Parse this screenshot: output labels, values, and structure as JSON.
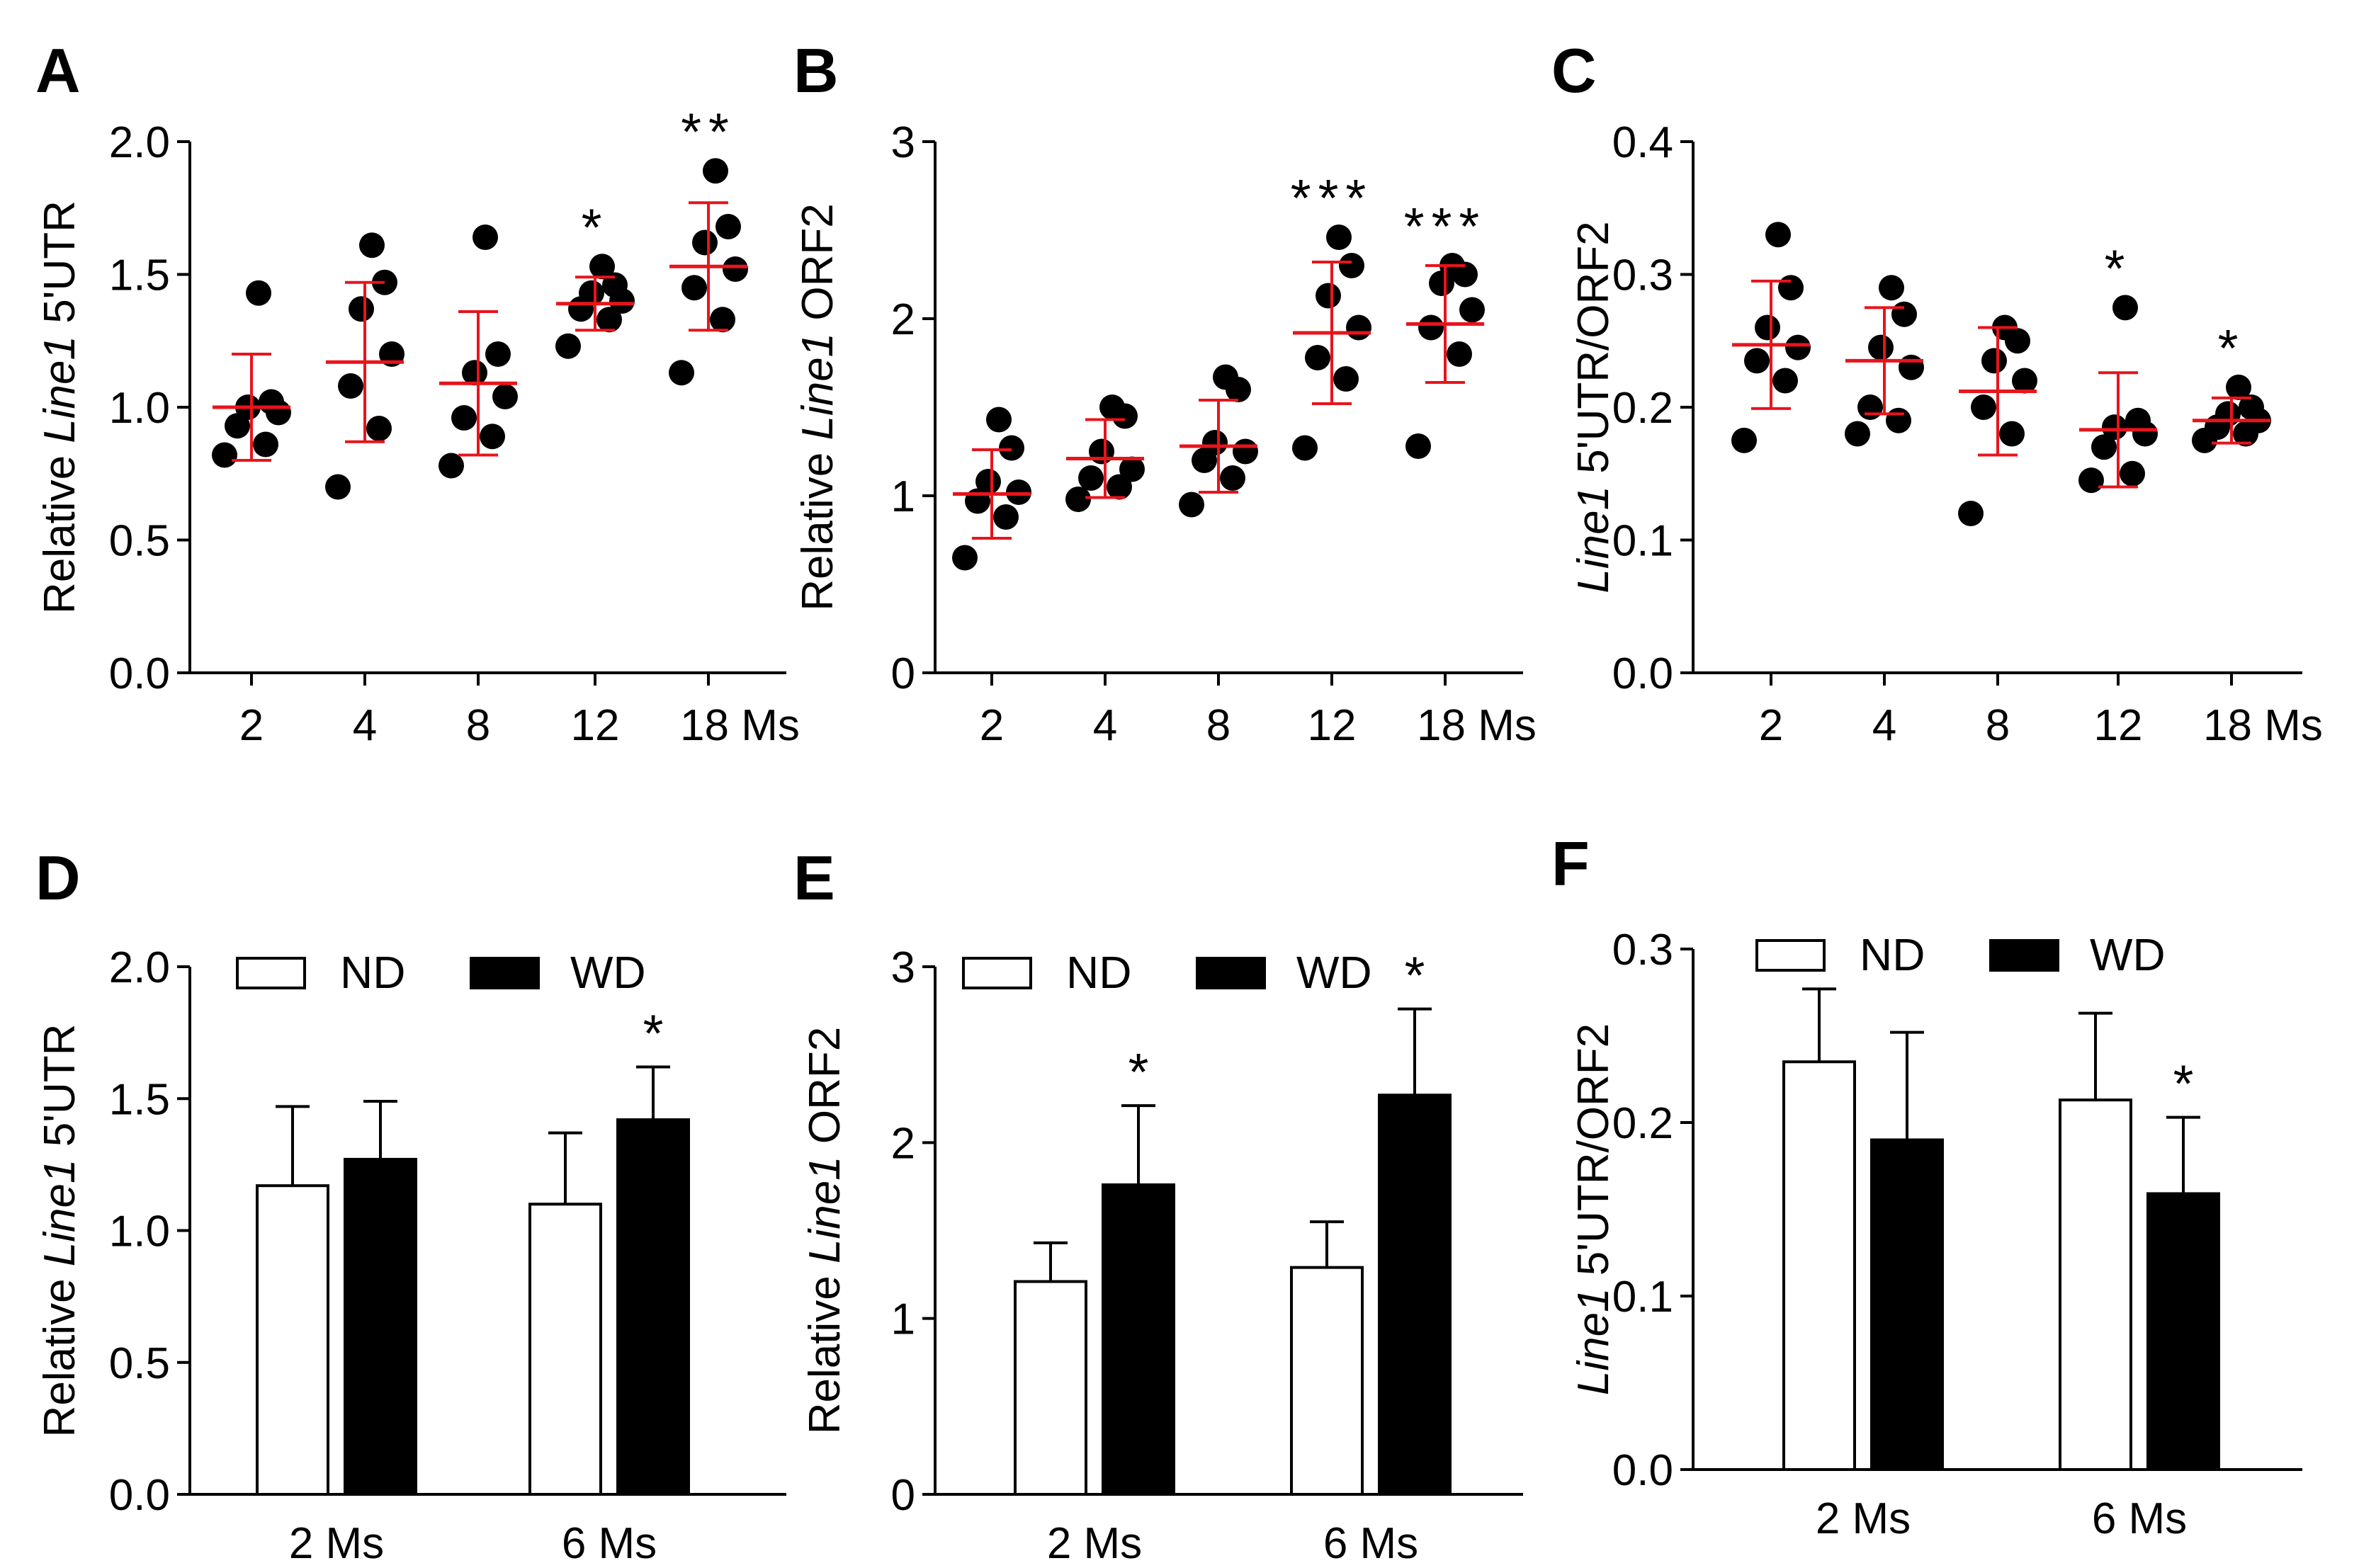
{
  "chart_data": [
    {
      "id": "A",
      "type": "scatter",
      "panel_label": "A",
      "ylabel_italic": "Line1",
      "ylabel_pre": "Relative ",
      "ylabel_post": " 5'UTR",
      "ylim": [
        0,
        2.0
      ],
      "yticks": [
        0,
        0.5,
        1.0,
        1.5,
        2.0
      ],
      "yticklabels": [
        "0.0",
        "0.5",
        "1.0",
        "1.5",
        "2.0"
      ],
      "categories": [
        "2",
        "4",
        "8",
        "12",
        "18 Ms"
      ],
      "points": [
        [
          0.82,
          0.86,
          0.93,
          0.98,
          1.0,
          1.02,
          1.43
        ],
        [
          0.7,
          0.92,
          1.08,
          1.2,
          1.37,
          1.47,
          1.61
        ],
        [
          0.78,
          0.89,
          0.96,
          1.04,
          1.13,
          1.2,
          1.64
        ],
        [
          1.23,
          1.33,
          1.37,
          1.4,
          1.43,
          1.46,
          1.53
        ],
        [
          1.13,
          1.33,
          1.45,
          1.52,
          1.62,
          1.68,
          1.89
        ]
      ],
      "means": [
        1.0,
        1.17,
        1.09,
        1.39,
        1.53
      ],
      "sd": [
        0.2,
        0.3,
        0.27,
        0.1,
        0.24
      ],
      "significance": [
        "",
        "",
        "",
        "*",
        "**"
      ]
    },
    {
      "id": "B",
      "type": "scatter",
      "panel_label": "B",
      "ylabel_italic": "Line1",
      "ylabel_pre": "Relative ",
      "ylabel_post": " ORF2",
      "ylim": [
        0,
        3
      ],
      "yticks": [
        0,
        1,
        2,
        3
      ],
      "yticklabels": [
        "0",
        "1",
        "2",
        "3"
      ],
      "categories": [
        "2",
        "4",
        "8",
        "12",
        "18 Ms"
      ],
      "points": [
        [
          0.65,
          0.88,
          0.97,
          1.02,
          1.08,
          1.27,
          1.43
        ],
        [
          0.98,
          1.05,
          1.1,
          1.15,
          1.25,
          1.45,
          1.5
        ],
        [
          0.95,
          1.1,
          1.2,
          1.25,
          1.3,
          1.6,
          1.67
        ],
        [
          1.27,
          1.66,
          1.78,
          1.95,
          2.13,
          2.3,
          2.46
        ],
        [
          1.28,
          1.8,
          1.95,
          2.05,
          2.2,
          2.25,
          2.3
        ]
      ],
      "means": [
        1.01,
        1.21,
        1.28,
        1.92,
        1.97
      ],
      "sd": [
        0.25,
        0.22,
        0.26,
        0.4,
        0.33
      ],
      "significance": [
        "",
        "",
        "",
        "***",
        "***"
      ]
    },
    {
      "id": "C",
      "type": "scatter",
      "panel_label": "C",
      "ylabel_italic": "Line1",
      "ylabel_pre": "",
      "ylabel_post": " 5'UTR/ORF2",
      "ylim": [
        0,
        0.4
      ],
      "yticks": [
        0,
        0.1,
        0.2,
        0.3,
        0.4
      ],
      "yticklabels": [
        "0.0",
        "0.1",
        "0.2",
        "0.3",
        "0.4"
      ],
      "categories": [
        "2",
        "4",
        "8",
        "12",
        "18 Ms"
      ],
      "points": [
        [
          0.175,
          0.22,
          0.235,
          0.245,
          0.26,
          0.29,
          0.33
        ],
        [
          0.18,
          0.19,
          0.2,
          0.23,
          0.245,
          0.27,
          0.29
        ],
        [
          0.12,
          0.18,
          0.2,
          0.22,
          0.235,
          0.25,
          0.26
        ],
        [
          0.145,
          0.15,
          0.17,
          0.18,
          0.185,
          0.19,
          0.275
        ],
        [
          0.175,
          0.18,
          0.185,
          0.19,
          0.195,
          0.2,
          0.215
        ]
      ],
      "means": [
        0.247,
        0.235,
        0.212,
        0.183,
        0.19
      ],
      "sd": [
        0.048,
        0.04,
        0.048,
        0.043,
        0.017
      ],
      "significance": [
        "",
        "",
        "",
        "*",
        "*"
      ]
    },
    {
      "id": "D",
      "type": "bar",
      "panel_label": "D",
      "ylabel_italic": "Line1",
      "ylabel_pre": "Relative ",
      "ylabel_post": " 5'UTR",
      "ylim": [
        0,
        2.0
      ],
      "yticks": [
        0,
        0.5,
        1.0,
        1.5,
        2.0
      ],
      "yticklabels": [
        "0.0",
        "0.5",
        "1.0",
        "1.5",
        "2.0"
      ],
      "categories": [
        "2 Ms",
        "6 Ms"
      ],
      "legend": [
        "ND",
        "WD"
      ],
      "series": [
        {
          "name": "ND",
          "values": [
            1.17,
            1.1
          ],
          "errors": [
            0.3,
            0.27
          ],
          "significance": [
            "",
            ""
          ]
        },
        {
          "name": "WD",
          "values": [
            1.27,
            1.42
          ],
          "errors": [
            0.22,
            0.2
          ],
          "significance": [
            "",
            "*"
          ]
        }
      ]
    },
    {
      "id": "E",
      "type": "bar",
      "panel_label": "E",
      "ylabel_italic": "Line1",
      "ylabel_pre": "Relative ",
      "ylabel_post": " ORF2",
      "ylim": [
        0,
        3
      ],
      "yticks": [
        0,
        1,
        2,
        3
      ],
      "yticklabels": [
        "0",
        "1",
        "2",
        "3"
      ],
      "categories": [
        "2 Ms",
        "6 Ms"
      ],
      "legend": [
        "ND",
        "WD"
      ],
      "series": [
        {
          "name": "ND",
          "values": [
            1.21,
            1.29
          ],
          "errors": [
            0.22,
            0.26
          ],
          "significance": [
            "",
            ""
          ]
        },
        {
          "name": "WD",
          "values": [
            1.76,
            2.27
          ],
          "errors": [
            0.45,
            0.49
          ],
          "significance": [
            "*",
            "*"
          ]
        }
      ]
    },
    {
      "id": "F",
      "type": "bar",
      "panel_label": "F",
      "ylabel_italic": "Line1",
      "ylabel_pre": "",
      "ylabel_post": " 5'UTR/ORF2",
      "ylim": [
        0,
        0.3
      ],
      "yticks": [
        0,
        0.1,
        0.2,
        0.3
      ],
      "yticklabels": [
        "0.0",
        "0.1",
        "0.2",
        "0.3"
      ],
      "categories": [
        "2 Ms",
        "6 Ms"
      ],
      "legend": [
        "ND",
        "WD"
      ],
      "series": [
        {
          "name": "ND",
          "values": [
            0.235,
            0.213
          ],
          "errors": [
            0.042,
            0.05
          ],
          "significance": [
            "",
            ""
          ]
        },
        {
          "name": "WD",
          "values": [
            0.19,
            0.159
          ],
          "errors": [
            0.062,
            0.044
          ],
          "significance": [
            "",
            "*"
          ]
        }
      ]
    }
  ],
  "colors": {
    "points": "#000000",
    "mean_sd": "#e8141c",
    "nd_fill": "#ffffff",
    "wd_fill": "#000000",
    "axis": "#000000"
  }
}
